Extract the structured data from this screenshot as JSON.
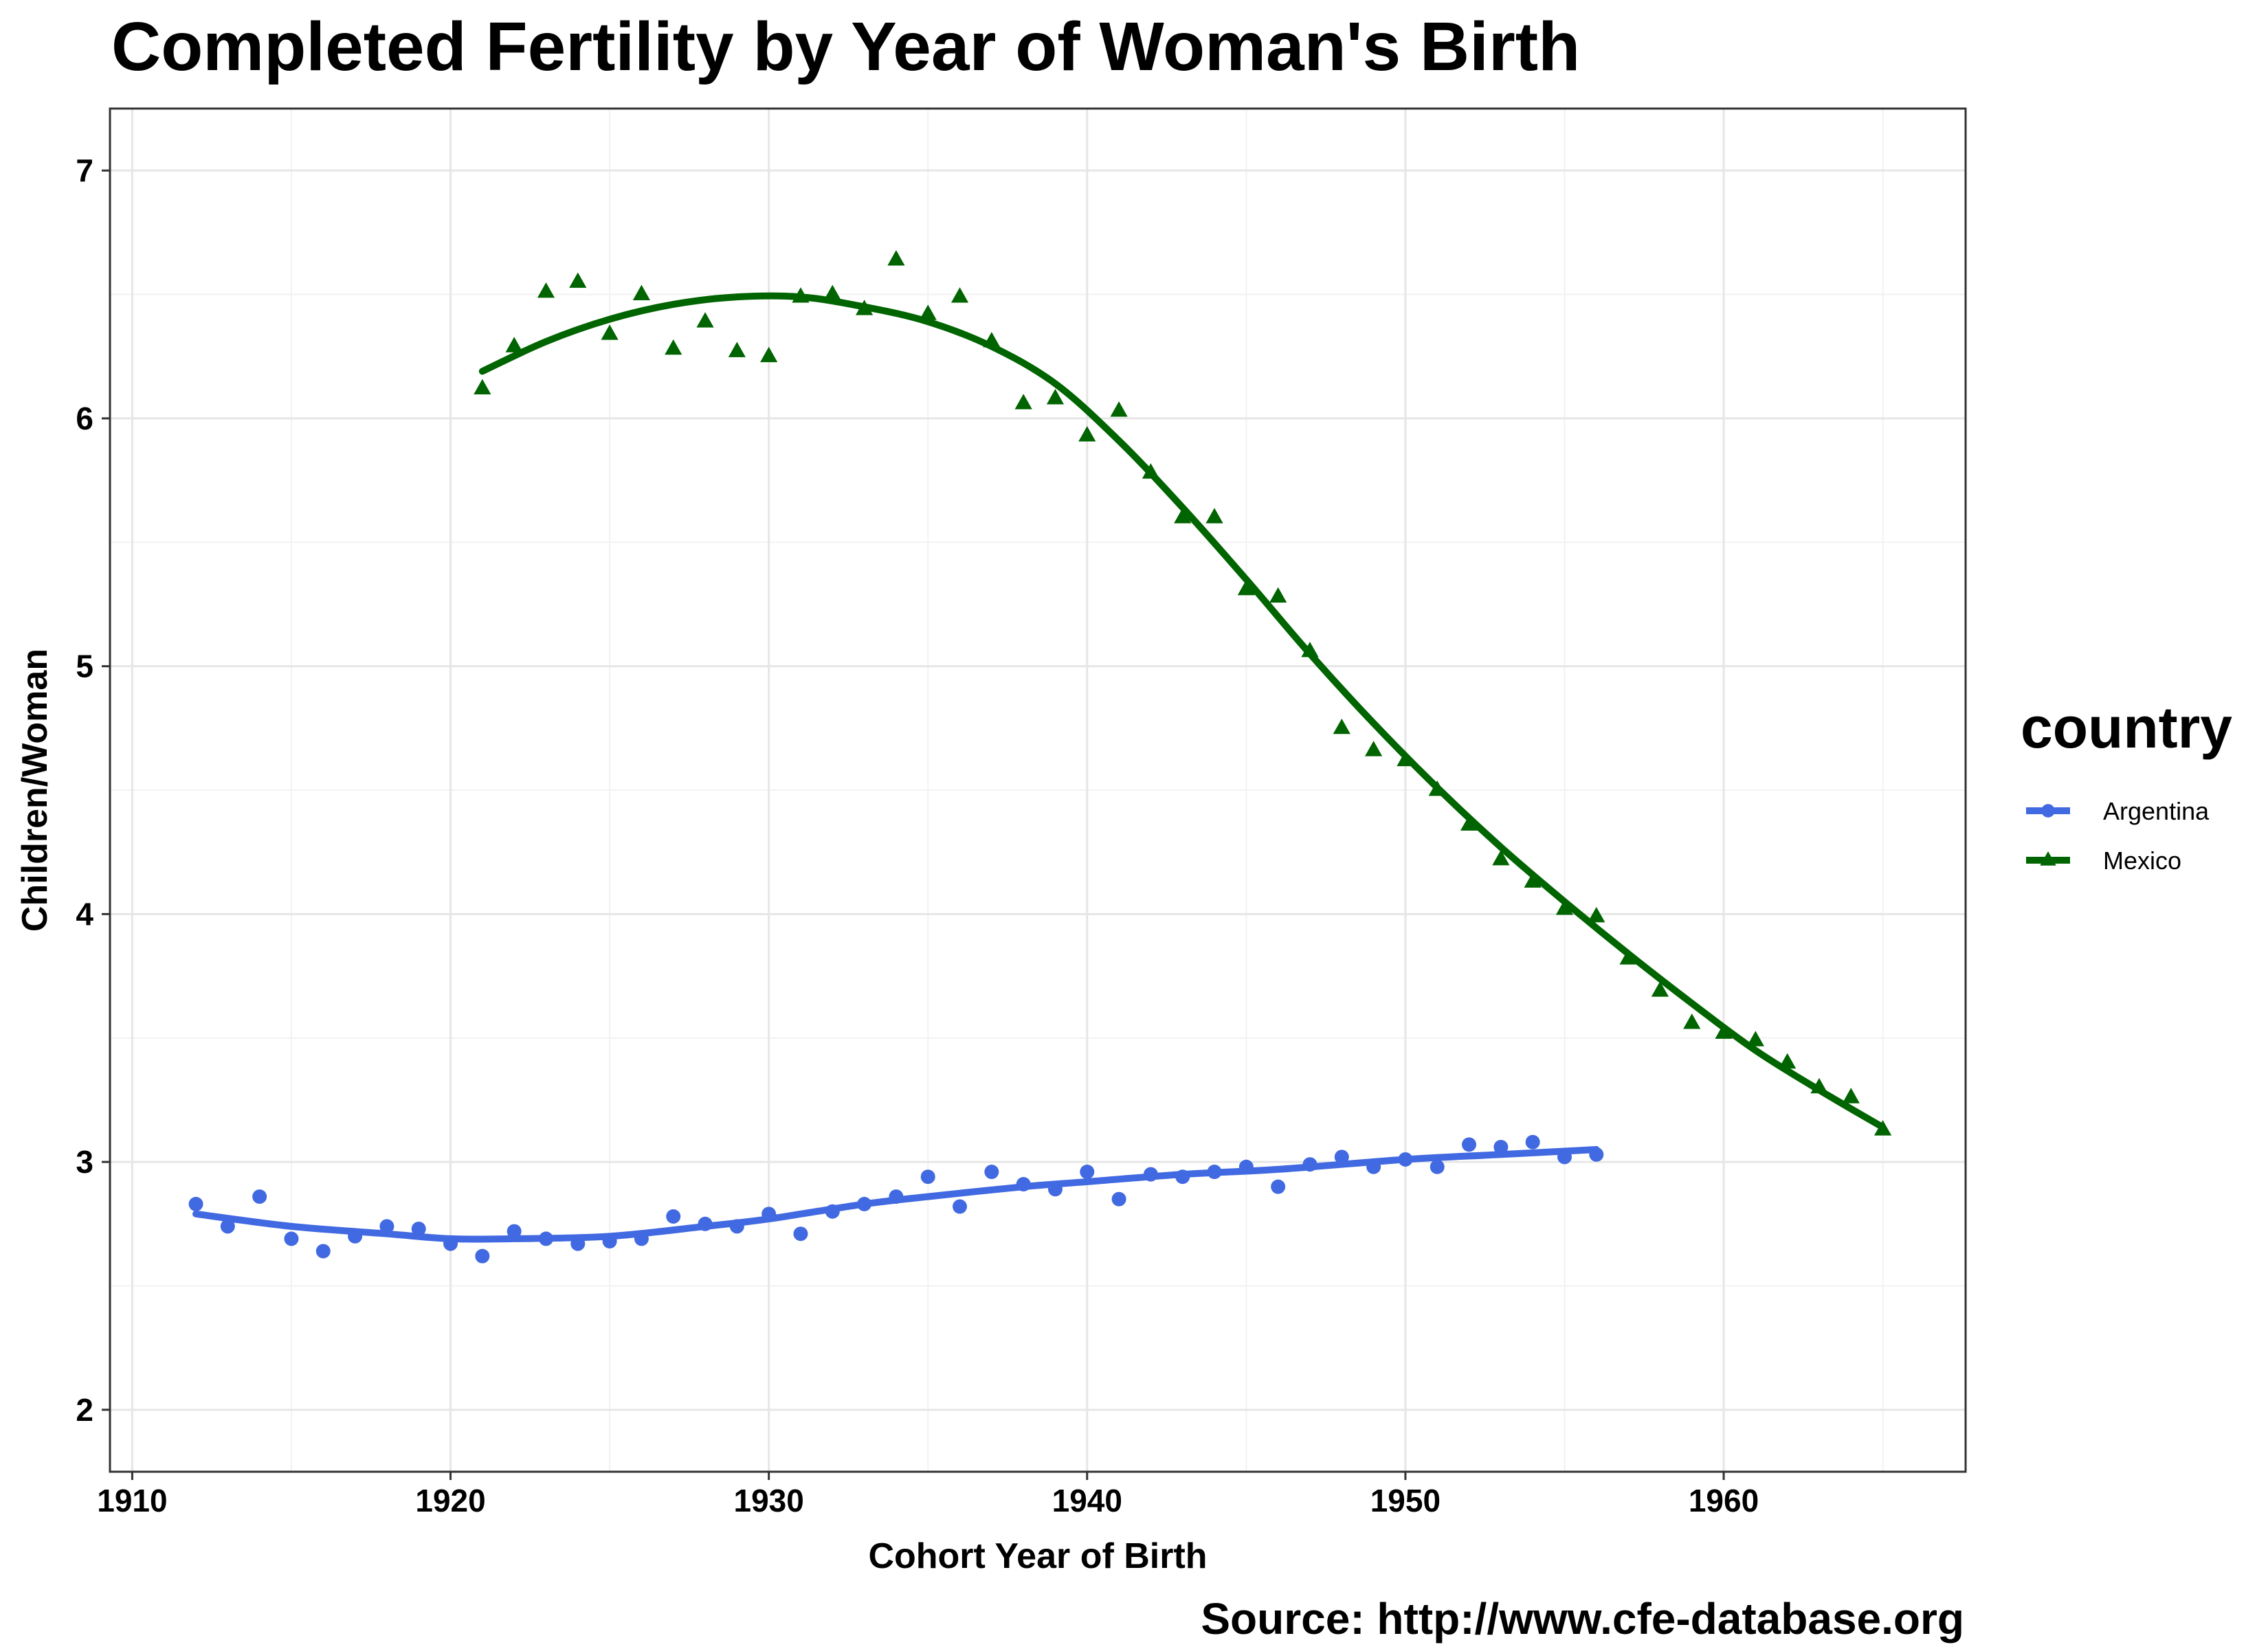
{
  "chart_data": {
    "type": "scatter",
    "title": "Completed Fertility by Year of Woman's Birth",
    "xlabel": "Cohort Year of Birth",
    "ylabel": "Children/Woman",
    "caption": "Source: http://www.cfe-database.org",
    "xlim": [
      1909.3,
      1967.6
    ],
    "ylim": [
      1.75,
      7.25
    ],
    "x_ticks": [
      "1910",
      "1920",
      "1930",
      "1940",
      "1950",
      "1960"
    ],
    "y_ticks": [
      "2",
      "3",
      "4",
      "5",
      "6",
      "7"
    ],
    "grid": true,
    "legend": {
      "title": "country",
      "position": "right"
    },
    "series": [
      {
        "name": "Argentina",
        "color": "#4169E1",
        "marker": "circle",
        "x": [
          1912,
          1913,
          1914,
          1915,
          1916,
          1917,
          1918,
          1919,
          1920,
          1921,
          1922,
          1923,
          1924,
          1925,
          1926,
          1927,
          1928,
          1929,
          1930,
          1931,
          1932,
          1933,
          1934,
          1935,
          1936,
          1937,
          1938,
          1939,
          1940,
          1941,
          1942,
          1943,
          1944,
          1945,
          1946,
          1947,
          1948,
          1949,
          1950,
          1951,
          1952,
          1953,
          1954,
          1955,
          1956
        ],
        "y": [
          2.83,
          2.74,
          2.86,
          2.69,
          2.64,
          2.7,
          2.74,
          2.73,
          2.67,
          2.62,
          2.72,
          2.69,
          2.67,
          2.68,
          2.69,
          2.78,
          2.75,
          2.74,
          2.79,
          2.71,
          2.8,
          2.83,
          2.86,
          2.94,
          2.82,
          2.96,
          2.91,
          2.89,
          2.96,
          2.85,
          2.95,
          2.94,
          2.96,
          2.98,
          2.9,
          2.99,
          3.02,
          2.98,
          3.01,
          2.98,
          3.07,
          3.06,
          3.08,
          3.02,
          3.03
        ],
        "smooth_x": [
          1912,
          1915,
          1918,
          1920,
          1922,
          1925,
          1928,
          1930,
          1933,
          1935,
          1938,
          1940,
          1943,
          1946,
          1950,
          1953,
          1956
        ],
        "smooth_y": [
          2.79,
          2.74,
          2.71,
          2.69,
          2.69,
          2.7,
          2.74,
          2.77,
          2.83,
          2.86,
          2.9,
          2.92,
          2.95,
          2.97,
          3.01,
          3.03,
          3.05
        ]
      },
      {
        "name": "Mexico",
        "color": "#006400",
        "marker": "triangle",
        "x": [
          1921,
          1922,
          1923,
          1924,
          1925,
          1926,
          1927,
          1928,
          1929,
          1930,
          1931,
          1932,
          1933,
          1934,
          1935,
          1936,
          1937,
          1938,
          1939,
          1940,
          1941,
          1942,
          1943,
          1944,
          1945,
          1946,
          1947,
          1948,
          1949,
          1950,
          1951,
          1952,
          1953,
          1954,
          1955,
          1956,
          1957,
          1958,
          1959,
          1960,
          1961,
          1962,
          1963,
          1964,
          1965
        ],
        "y": [
          6.12,
          6.29,
          6.51,
          6.55,
          6.34,
          6.5,
          6.28,
          6.39,
          6.27,
          6.25,
          6.49,
          6.5,
          6.44,
          6.64,
          6.42,
          6.49,
          6.31,
          6.06,
          6.08,
          5.93,
          6.03,
          5.78,
          5.6,
          5.6,
          5.31,
          5.28,
          5.06,
          4.75,
          4.66,
          4.62,
          4.5,
          4.36,
          4.22,
          4.13,
          4.02,
          3.99,
          3.82,
          3.69,
          3.56,
          3.52,
          3.49,
          3.4,
          3.3,
          3.26,
          3.13
        ],
        "smooth_x": [
          1921,
          1923,
          1925,
          1927,
          1929,
          1931,
          1933,
          1935,
          1937,
          1939,
          1941,
          1943,
          1945,
          1947,
          1949,
          1951,
          1953,
          1955,
          1957,
          1959,
          1961,
          1963,
          1965
        ],
        "smooth_y": [
          6.19,
          6.31,
          6.4,
          6.46,
          6.49,
          6.49,
          6.45,
          6.39,
          6.29,
          6.14,
          5.91,
          5.64,
          5.35,
          5.05,
          4.77,
          4.51,
          4.27,
          4.05,
          3.84,
          3.64,
          3.45,
          3.29,
          3.14
        ]
      }
    ]
  }
}
